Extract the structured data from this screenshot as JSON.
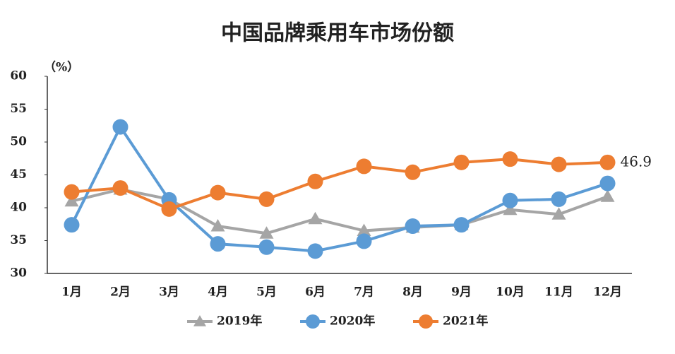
{
  "chart_data": {
    "type": "line",
    "title": "中国品牌乘用车市场份额",
    "y_label": "（%）",
    "categories": [
      "1月",
      "2月",
      "3月",
      "4月",
      "5月",
      "6月",
      "7月",
      "8月",
      "9月",
      "10月",
      "11月",
      "12月"
    ],
    "series": [
      {
        "name": "2019年",
        "color": "#a5a5a5",
        "marker": "triangle",
        "values": [
          41.0,
          42.8,
          41.3,
          37.2,
          36.1,
          38.3,
          36.5,
          37.0,
          37.4,
          39.7,
          39.0,
          41.7
        ]
      },
      {
        "name": "2020年",
        "color": "#5b9bd5",
        "marker": "circle",
        "values": [
          37.4,
          52.3,
          41.2,
          34.5,
          34.0,
          33.4,
          34.9,
          37.2,
          37.4,
          41.1,
          41.3,
          43.7
        ]
      },
      {
        "name": "2021年",
        "color": "#ed7d31",
        "marker": "circle",
        "values": [
          42.4,
          43.0,
          39.8,
          42.3,
          41.3,
          44.0,
          46.3,
          45.4,
          46.9,
          47.4,
          46.6,
          46.9
        ],
        "value_labels": [
          null,
          null,
          null,
          null,
          null,
          null,
          null,
          null,
          null,
          null,
          null,
          "46.9"
        ]
      }
    ],
    "ylim": [
      30,
      60
    ],
    "yticks": [
      30,
      35,
      40,
      45,
      50,
      55,
      60
    ],
    "grid": false,
    "legend": "bottom"
  }
}
